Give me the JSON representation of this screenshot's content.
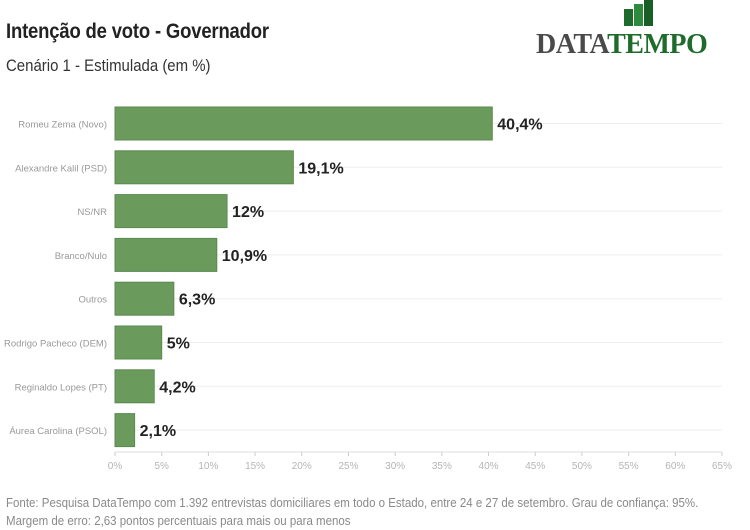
{
  "header": {
    "title": "Intenção de voto - Governador",
    "subtitle": "Cenário 1 - Estimulada (em %)"
  },
  "logo": {
    "part1": "DATA",
    "part2": "TEMPO",
    "color_part1": "#4a4a4a",
    "color_part2": "#1e6b2c"
  },
  "colors": {
    "bar": "#6a9a5c",
    "bar_border": "#5b8a4e",
    "grid": "#eeeeee",
    "axis_text": "#b5b5b5",
    "category_text": "#999999",
    "value_label": "#222222"
  },
  "chart_data": {
    "type": "bar",
    "orientation": "horizontal",
    "title": "Intenção de voto - Governador",
    "subtitle": "Cenário 1 - Estimulada (em %)",
    "categories": [
      "Romeu Zema (Novo)",
      "Alexandre Kalil (PSD)",
      "NS/NR",
      "Branco/Nulo",
      "Outros",
      "Rodrigo Pacheco (DEM)",
      "Reginaldo Lopes (PT)",
      "Áurea Carolina (PSOL)"
    ],
    "values": [
      40.4,
      19.1,
      12,
      10.9,
      6.3,
      5,
      4.2,
      2.1
    ],
    "value_labels": [
      "40,4%",
      "19,1%",
      "12%",
      "10,9%",
      "6,3%",
      "5%",
      "4,2%",
      "2,1%"
    ],
    "xlabel": "",
    "ylabel": "",
    "xlim": [
      0,
      65
    ],
    "xticks": [
      0,
      5,
      10,
      15,
      20,
      25,
      30,
      35,
      40,
      45,
      50,
      55,
      60,
      65
    ],
    "xtick_labels": [
      "0%",
      "5%",
      "10%",
      "15%",
      "20%",
      "25%",
      "30%",
      "35%",
      "40%",
      "45%",
      "50%",
      "55%",
      "60%",
      "65%"
    ],
    "grid": true,
    "legend": "none"
  },
  "footer": {
    "line1": "Fonte: Pesquisa DataTempo com 1.392 entrevistas domiciliares em todo o Estado, entre 24 e 27 de setembro. Grau de confiança: 95%.",
    "line2": "Margem de erro: 2,63 pontos percentuais para mais ou para menos"
  }
}
